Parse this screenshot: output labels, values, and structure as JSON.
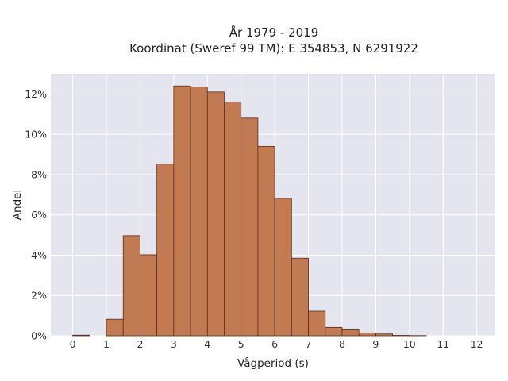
{
  "chart_data": {
    "type": "bar",
    "title": "År 1979 - 2019",
    "subtitle": "Koordinat (Sweref 99 TM): E 354853, N 6291922",
    "xlabel": "Vågperiod (s)",
    "ylabel": "Andel",
    "x_ticks": [
      0,
      1,
      2,
      3,
      4,
      5,
      6,
      7,
      8,
      9,
      10,
      11,
      12
    ],
    "x_tick_labels": [
      "0",
      "1",
      "2",
      "3",
      "4",
      "5",
      "6",
      "7",
      "8",
      "9",
      "10",
      "11",
      "12"
    ],
    "y_ticks": [
      0,
      2,
      4,
      6,
      8,
      10,
      12
    ],
    "y_tick_labels": [
      "0%",
      "2%",
      "4%",
      "6%",
      "8%",
      "10%",
      "12%"
    ],
    "xlim": [
      -0.65,
      12.55
    ],
    "ylim": [
      0,
      13.0
    ],
    "grid": true,
    "bin_width": 0.5,
    "bins": [
      {
        "start": 0.0,
        "value": 0.03
      },
      {
        "start": 1.0,
        "value": 0.82
      },
      {
        "start": 1.5,
        "value": 4.97
      },
      {
        "start": 2.0,
        "value": 4.02
      },
      {
        "start": 2.5,
        "value": 8.52
      },
      {
        "start": 3.0,
        "value": 12.4
      },
      {
        "start": 3.5,
        "value": 12.35
      },
      {
        "start": 4.0,
        "value": 12.1
      },
      {
        "start": 4.5,
        "value": 11.6
      },
      {
        "start": 5.0,
        "value": 10.8
      },
      {
        "start": 5.5,
        "value": 9.4
      },
      {
        "start": 6.0,
        "value": 6.82
      },
      {
        "start": 6.5,
        "value": 3.85
      },
      {
        "start": 7.0,
        "value": 1.22
      },
      {
        "start": 7.5,
        "value": 0.42
      },
      {
        "start": 8.0,
        "value": 0.3
      },
      {
        "start": 8.5,
        "value": 0.14
      },
      {
        "start": 9.0,
        "value": 0.09
      },
      {
        "start": 9.5,
        "value": 0.02
      },
      {
        "start": 10.0,
        "value": 0.01
      }
    ],
    "colors": {
      "bar_fill": "#c27a53",
      "bar_stroke": "#5a2e1a",
      "plot_background": "#e5e5f0",
      "grid": "#ffffff"
    }
  }
}
